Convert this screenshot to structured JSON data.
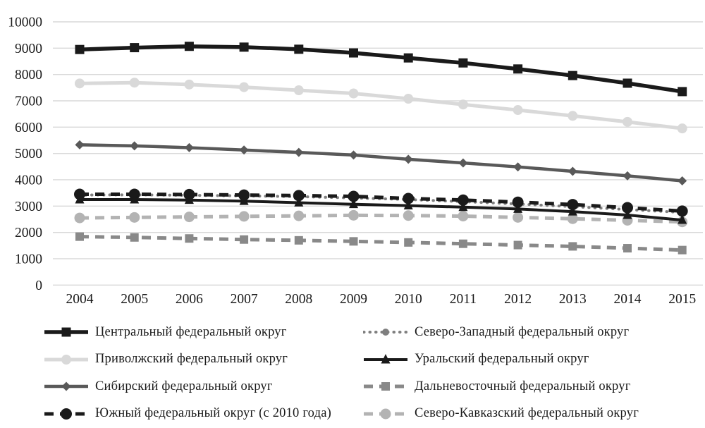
{
  "chart_data": {
    "type": "line",
    "title": "",
    "xlabel": "",
    "ylabel": "",
    "categories": [
      "2004",
      "2005",
      "2006",
      "2007",
      "2008",
      "2009",
      "2010",
      "2011",
      "2012",
      "2013",
      "2014",
      "2015"
    ],
    "y_axis": {
      "min": 0,
      "max": 10000,
      "step": 1000,
      "tick_labels": [
        "0",
        "1000",
        "2000",
        "3000",
        "4000",
        "5000",
        "6000",
        "7000",
        "8000",
        "9000",
        "10000"
      ]
    },
    "grid": true,
    "gridline_color": "#d9d9d9",
    "background": "#ffffff",
    "text_color": "#1a1a1a",
    "series": [
      {
        "id": "central",
        "name": "Центральный федеральный округ",
        "color": "#1a1a1a",
        "line": "solid",
        "marker": "square",
        "values": [
          8950,
          9020,
          9070,
          9040,
          8960,
          8820,
          8630,
          8440,
          8210,
          7960,
          7670,
          7350
        ]
      },
      {
        "id": "northwestern",
        "name": "Северо-Западный федеральный округ",
        "color": "#7f7f7f",
        "line": "dotted",
        "marker": "circle",
        "values": [
          3420,
          3430,
          3410,
          3390,
          3360,
          3310,
          3250,
          3170,
          3080,
          2980,
          2870,
          2760
        ]
      },
      {
        "id": "volga",
        "name": "Приволжский федеральный округ",
        "color": "#d9d9d9",
        "line": "solid",
        "marker": "circle",
        "values": [
          7660,
          7690,
          7620,
          7520,
          7400,
          7280,
          7080,
          6860,
          6650,
          6430,
          6200,
          5950
        ]
      },
      {
        "id": "ural",
        "name": "Уральский федеральный округ",
        "color": "#1a1a1a",
        "line": "solid",
        "marker": "triangle",
        "values": [
          3250,
          3250,
          3230,
          3190,
          3130,
          3070,
          3020,
          2960,
          2890,
          2790,
          2660,
          2470
        ]
      },
      {
        "id": "siberian",
        "name": "Сибирский федеральный округ",
        "color": "#595959",
        "line": "solid",
        "marker": "diamond",
        "values": [
          5330,
          5290,
          5220,
          5130,
          5040,
          4940,
          4780,
          4640,
          4490,
          4320,
          4150,
          3960
        ]
      },
      {
        "id": "fareastern",
        "name": "Дальневосточный федеральный округ",
        "color": "#898989",
        "line": "dashed",
        "marker": "square",
        "values": [
          1840,
          1810,
          1770,
          1730,
          1700,
          1660,
          1620,
          1570,
          1520,
          1470,
          1400,
          1330
        ]
      },
      {
        "id": "southern",
        "name": "Южный федеральный округ (с 2010 года)",
        "color": "#1a1a1a",
        "line": "dashed",
        "marker": "circle",
        "values": [
          3450,
          3450,
          3440,
          3420,
          3400,
          3370,
          3290,
          3230,
          3150,
          3060,
          2940,
          2810
        ]
      },
      {
        "id": "northcaucasian",
        "name": "Северо-Кавказский федеральный округ",
        "color": "#b3b3b3",
        "line": "dashed",
        "marker": "circle",
        "values": [
          2550,
          2570,
          2590,
          2610,
          2630,
          2650,
          2640,
          2620,
          2570,
          2520,
          2460,
          2400
        ]
      }
    ],
    "legend": {
      "position": "bottom",
      "columns": 2,
      "order": [
        "central",
        "northwestern",
        "volga",
        "ural",
        "siberian",
        "fareastern",
        "southern",
        "northcaucasian"
      ]
    }
  }
}
